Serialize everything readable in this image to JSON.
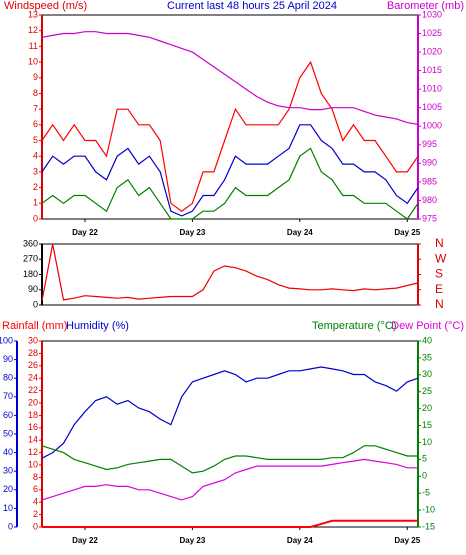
{
  "chart_data": [
    {
      "type": "line",
      "title": "Current last 48 hours 25 April 2024",
      "y_label": "Windspeed (m/s)",
      "y2_label": "Barometer (mb)",
      "categories": [
        null,
        null,
        null,
        null,
        "Day 22",
        null,
        null,
        null,
        null,
        null,
        null,
        null,
        null,
        null,
        "Day 23",
        null,
        null,
        null,
        null,
        null,
        null,
        null,
        null,
        null,
        "Day 24",
        null,
        null,
        null,
        null,
        null,
        null,
        null,
        null,
        null,
        "Day 25",
        null
      ],
      "ylim": [
        0,
        13
      ],
      "yticks": [
        0,
        1,
        2,
        3,
        4,
        5,
        6,
        7,
        8,
        9,
        10,
        11,
        12,
        13
      ],
      "ycolor": "#dd0000",
      "y2lim": [
        975,
        1030
      ],
      "y2ticks": [
        975,
        980,
        985,
        990,
        995,
        1000,
        1005,
        1010,
        1015,
        1020,
        1025,
        1030
      ],
      "y2color": "#cc00cc",
      "grid": false,
      "series": [
        {
          "color": "#ff0000",
          "values": [
            5,
            6,
            5,
            6,
            5,
            5,
            4,
            7,
            7,
            6,
            6,
            5,
            1,
            0.5,
            1,
            3,
            3,
            5,
            7,
            6,
            6,
            6,
            6,
            7,
            9,
            10,
            8,
            7,
            5,
            6,
            5,
            5,
            4,
            3,
            3,
            4
          ]
        },
        {
          "color": "#0000cc",
          "values": [
            3,
            4,
            3.5,
            4,
            4,
            3,
            2.5,
            4,
            4.5,
            3.5,
            4,
            3,
            0.5,
            0.2,
            0.5,
            1.5,
            1.5,
            2.5,
            4,
            3.5,
            3.5,
            3.5,
            4,
            4.5,
            6,
            6,
            5,
            4.5,
            3.5,
            3.5,
            3,
            3,
            2.5,
            1.5,
            1,
            2
          ]
        },
        {
          "color": "#008000",
          "values": [
            1,
            1.5,
            1,
            1.5,
            1.5,
            1,
            0.5,
            2,
            2.5,
            1.5,
            2,
            1,
            0,
            0,
            0,
            0.5,
            0.5,
            1,
            2,
            1.5,
            1.5,
            1.5,
            2,
            2.5,
            4,
            4.5,
            3,
            2.5,
            1.5,
            1.5,
            1,
            1,
            1,
            0.5,
            0,
            1
          ]
        },
        {
          "color": "#cc00cc",
          "axis": "y2",
          "values": [
            1024,
            1024.5,
            1025,
            1025,
            1025.5,
            1025.5,
            1025,
            1025,
            1025,
            1024.5,
            1024,
            1023,
            1022,
            1021,
            1020,
            1018,
            1016,
            1014,
            1012,
            1010,
            1008,
            1006.5,
            1005.5,
            1005,
            1005,
            1004.5,
            1004.5,
            1005,
            1005,
            1005,
            1004,
            1003,
            1002.5,
            1002,
            1001,
            1000.5
          ]
        }
      ]
    },
    {
      "type": "line",
      "categories": [
        null,
        null,
        null,
        null,
        null,
        null,
        null,
        null,
        null,
        null,
        null,
        null,
        null,
        null,
        null,
        null,
        null,
        null,
        null,
        null,
        null,
        null,
        null,
        null,
        null,
        null,
        null,
        null,
        null,
        null,
        null,
        null,
        null,
        null,
        null,
        null
      ],
      "ylim": [
        0,
        360
      ],
      "yticks": [
        0,
        90,
        180,
        270,
        360
      ],
      "ycolor": "#000000",
      "y2lim": [
        0,
        360
      ],
      "y2ticks": [
        {
          "value": 360,
          "label": "N"
        },
        {
          "value": 270,
          "label": "W"
        },
        {
          "value": 180,
          "label": "S"
        },
        {
          "value": 90,
          "label": "E"
        },
        {
          "value": 0,
          "label": "N"
        }
      ],
      "y2color": "#dd0000",
      "grid": false,
      "series": [
        {
          "color": "#ee0000",
          "values": [
            25,
            360,
            30,
            40,
            55,
            50,
            45,
            40,
            45,
            35,
            40,
            45,
            50,
            50,
            50,
            90,
            200,
            230,
            220,
            200,
            170,
            150,
            120,
            100,
            95,
            90,
            90,
            95,
            90,
            85,
            95,
            90,
            95,
            100,
            115,
            130
          ]
        }
      ]
    },
    {
      "type": "line",
      "categories": [
        null,
        null,
        null,
        null,
        "Day 22",
        null,
        null,
        null,
        null,
        null,
        null,
        null,
        null,
        null,
        "Day 23",
        null,
        null,
        null,
        null,
        null,
        null,
        null,
        null,
        null,
        "Day 24",
        null,
        null,
        null,
        null,
        null,
        null,
        null,
        null,
        null,
        "Day 25",
        null
      ],
      "ylim": [
        0,
        100
      ],
      "yticks": [
        0,
        10,
        20,
        30,
        40,
        50,
        60,
        70,
        80,
        90,
        100
      ],
      "ycolor": "#0000cc",
      "y3lim": [
        0,
        30
      ],
      "y3ticks": [
        0,
        2,
        4,
        6,
        8,
        10,
        12,
        14,
        16,
        18,
        20,
        22,
        24,
        26,
        28,
        30
      ],
      "y3color": "#dd0000",
      "y2lim": [
        -15,
        40
      ],
      "y2ticks": [
        -15,
        -10,
        -5,
        0,
        5,
        10,
        15,
        20,
        25,
        30,
        35,
        40
      ],
      "y2color": "#008000",
      "grid": false,
      "series": [
        {
          "name": "Rainfall (mm)",
          "color": "#ff0000",
          "axis": "y3",
          "values": [
            0,
            0,
            0,
            0,
            0,
            0,
            0,
            0,
            0,
            0,
            0,
            0,
            0,
            0,
            0,
            0,
            0,
            0,
            0,
            0,
            0,
            0,
            0,
            0,
            0,
            0,
            0.5,
            1,
            1,
            1,
            1,
            1,
            1,
            1,
            1,
            1
          ]
        },
        {
          "name": "Humidity (%)",
          "color": "#0000cc",
          "values": [
            37,
            40,
            45,
            55,
            62,
            68,
            70,
            66,
            68,
            64,
            62,
            58,
            55,
            70,
            78,
            80,
            82,
            84,
            82,
            78,
            80,
            80,
            82,
            84,
            84,
            85,
            86,
            85,
            84,
            82,
            82,
            78,
            76,
            73,
            78,
            80
          ]
        },
        {
          "name": "Temperature (°C)",
          "color": "#008000",
          "axis": "y2",
          "values": [
            9,
            8,
            7,
            5,
            4,
            3,
            2,
            2.5,
            3.5,
            4,
            4.5,
            5,
            5,
            3,
            1,
            1.5,
            3,
            5,
            6,
            6,
            5.5,
            5,
            5,
            5,
            5,
            5,
            5,
            5.5,
            5.5,
            7,
            9,
            9,
            8,
            7,
            6,
            6
          ]
        },
        {
          "name": "Dew Point (°C)",
          "color": "#dd00dd",
          "axis": "y2",
          "values": [
            -7,
            -6,
            -5,
            -4,
            -3,
            -3,
            -2.5,
            -3,
            -3,
            -4,
            -4,
            -5,
            -6,
            -7,
            -6,
            -3,
            -2,
            -1,
            1,
            2,
            3,
            3,
            3,
            3,
            3,
            3,
            3,
            3.5,
            4,
            4.5,
            5,
            4.5,
            4,
            3.5,
            2.5,
            2.5
          ]
        }
      ]
    }
  ]
}
